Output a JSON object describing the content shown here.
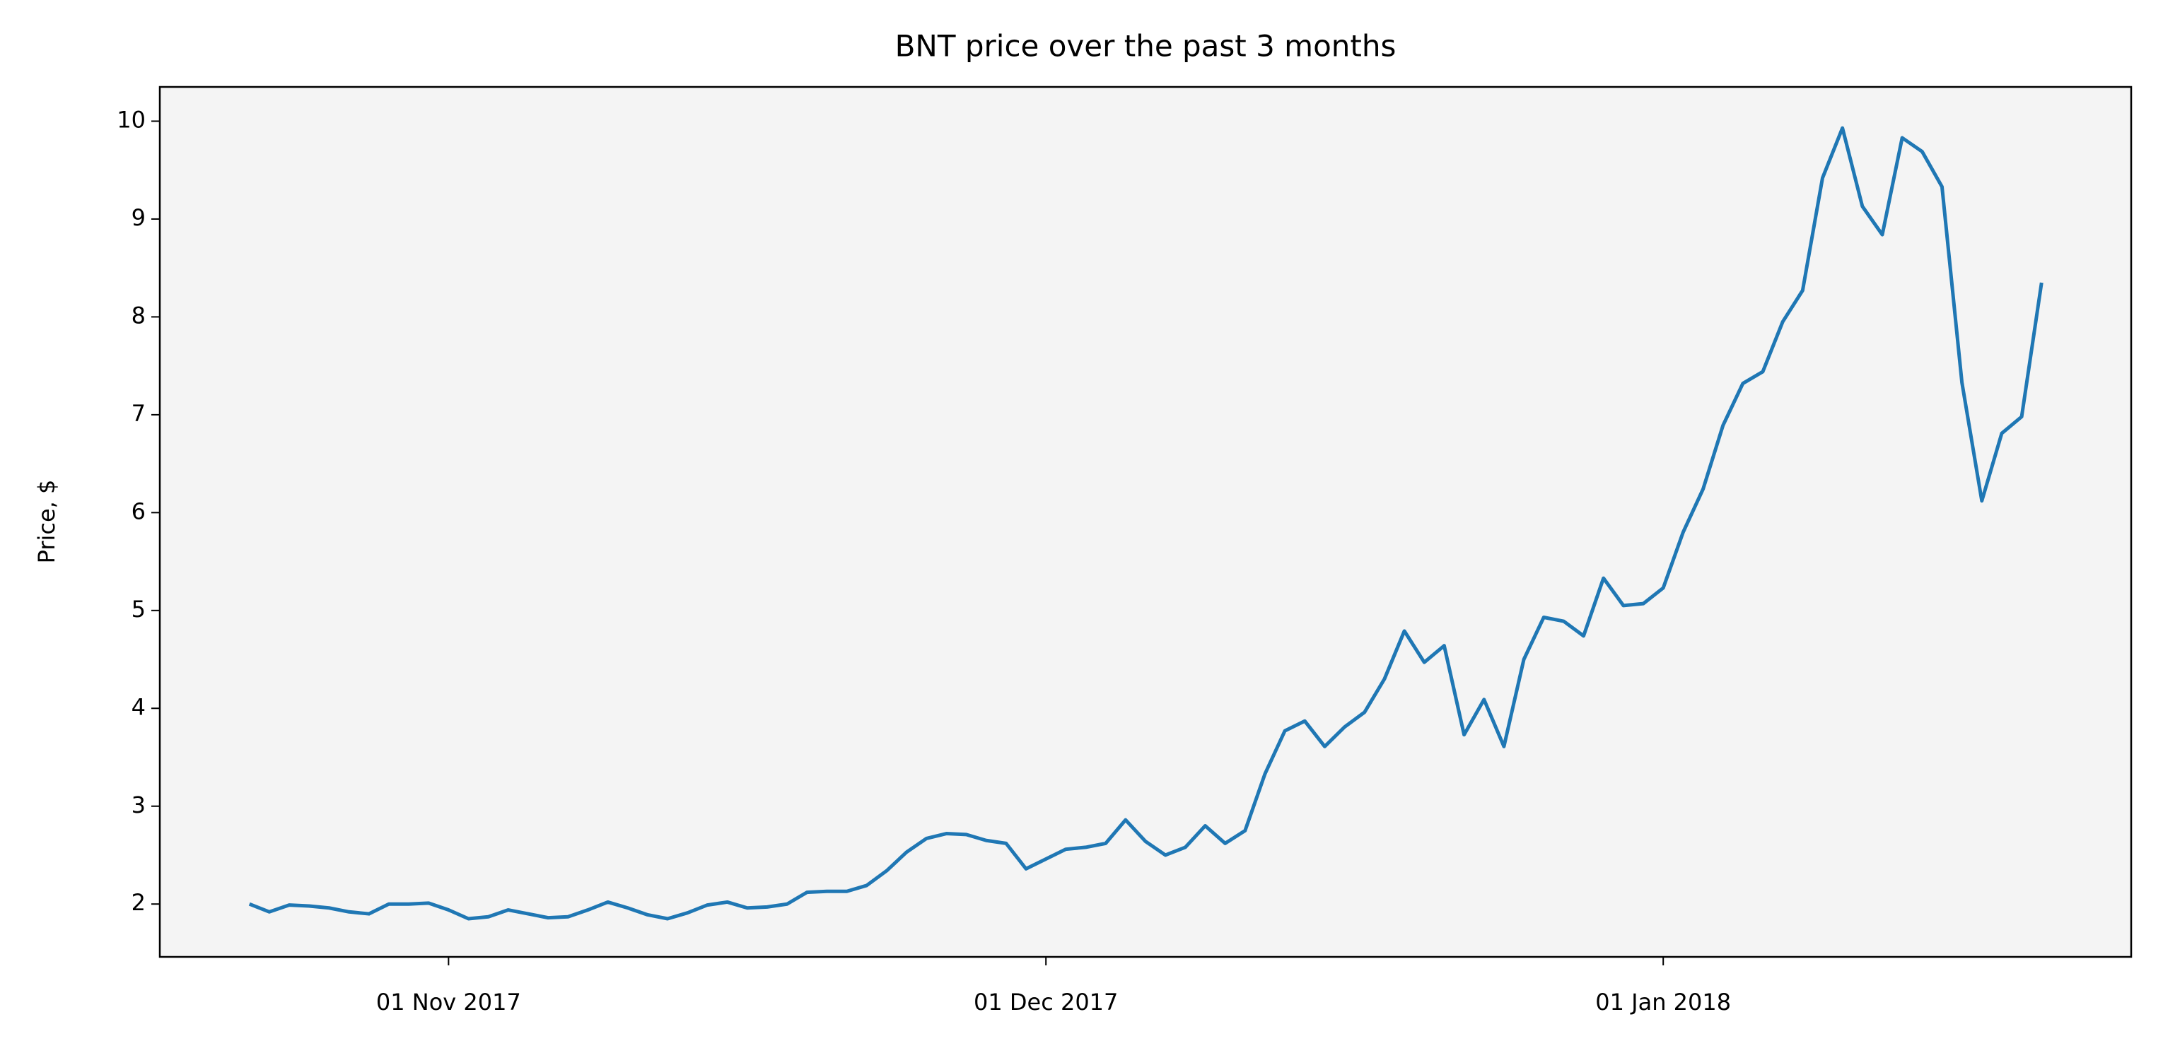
{
  "chart_data": {
    "type": "line",
    "title": "BNT price over the past 3 months",
    "y_label": "Price, $",
    "x": [
      "2017-10-22",
      "2017-10-23",
      "2017-10-24",
      "2017-10-25",
      "2017-10-26",
      "2017-10-27",
      "2017-10-28",
      "2017-10-29",
      "2017-10-30",
      "2017-10-31",
      "2017-11-01",
      "2017-11-02",
      "2017-11-03",
      "2017-11-04",
      "2017-11-05",
      "2017-11-06",
      "2017-11-07",
      "2017-11-08",
      "2017-11-09",
      "2017-11-10",
      "2017-11-11",
      "2017-11-12",
      "2017-11-13",
      "2017-11-14",
      "2017-11-15",
      "2017-11-16",
      "2017-11-17",
      "2017-11-18",
      "2017-11-19",
      "2017-11-20",
      "2017-11-21",
      "2017-11-22",
      "2017-11-23",
      "2017-11-24",
      "2017-11-25",
      "2017-11-26",
      "2017-11-27",
      "2017-11-28",
      "2017-11-29",
      "2017-11-30",
      "2017-12-01",
      "2017-12-02",
      "2017-12-03",
      "2017-12-04",
      "2017-12-05",
      "2017-12-06",
      "2017-12-07",
      "2017-12-08",
      "2017-12-09",
      "2017-12-10",
      "2017-12-11",
      "2017-12-12",
      "2017-12-13",
      "2017-12-14",
      "2017-12-15",
      "2017-12-16",
      "2017-12-17",
      "2017-12-18",
      "2017-12-19",
      "2017-12-20",
      "2017-12-21",
      "2017-12-22",
      "2017-12-23",
      "2017-12-24",
      "2017-12-25",
      "2017-12-26",
      "2017-12-27",
      "2017-12-28",
      "2017-12-29",
      "2017-12-30",
      "2017-12-31",
      "2018-01-01",
      "2018-01-02",
      "2018-01-03",
      "2018-01-04",
      "2018-01-05",
      "2018-01-06",
      "2018-01-07",
      "2018-01-08",
      "2018-01-09",
      "2018-01-10",
      "2018-01-11",
      "2018-01-12",
      "2018-01-13",
      "2018-01-14",
      "2018-01-15",
      "2018-01-16",
      "2018-01-17",
      "2018-01-18",
      "2018-01-19",
      "2018-01-20"
    ],
    "series": [
      {
        "name": "BNT",
        "color": "#1f77b4",
        "values": [
          2.0,
          1.92,
          1.99,
          1.98,
          1.96,
          1.92,
          1.9,
          2.0,
          2.0,
          2.01,
          1.94,
          1.85,
          1.87,
          1.94,
          1.9,
          1.86,
          1.87,
          1.94,
          2.02,
          1.96,
          1.89,
          1.85,
          1.91,
          1.99,
          2.02,
          1.96,
          1.97,
          2.0,
          2.12,
          2.13,
          2.13,
          2.19,
          2.34,
          2.53,
          2.67,
          2.72,
          2.71,
          2.65,
          2.62,
          2.36,
          2.46,
          2.56,
          2.58,
          2.62,
          2.86,
          2.64,
          2.5,
          2.58,
          2.8,
          2.62,
          2.75,
          3.33,
          3.77,
          3.87,
          3.61,
          3.81,
          3.96,
          4.3,
          4.79,
          4.47,
          4.64,
          3.73,
          4.09,
          3.61,
          4.5,
          4.93,
          4.89,
          4.74,
          5.33,
          5.05,
          5.07,
          5.23,
          5.8,
          6.24,
          6.89,
          7.32,
          7.44,
          7.95,
          8.27,
          9.42,
          9.93,
          9.13,
          8.84,
          9.83,
          9.69,
          9.33,
          7.33,
          6.12,
          6.81,
          6.98,
          8.35
        ]
      }
    ],
    "xlim": [
      "2017-10-17T12:00",
      "2018-01-24T12:00"
    ],
    "xticks": [
      {
        "value": "2017-11-01",
        "label": "01 Nov 2017"
      },
      {
        "value": "2017-12-01",
        "label": "01 Dec 2017"
      },
      {
        "value": "2018-01-01",
        "label": "01 Jan 2018"
      }
    ],
    "ylim": [
      1.46,
      10.35
    ],
    "yticks": [
      2,
      3,
      4,
      5,
      6,
      7,
      8,
      9,
      10
    ],
    "grid": false,
    "background": "#f4f4f4"
  }
}
